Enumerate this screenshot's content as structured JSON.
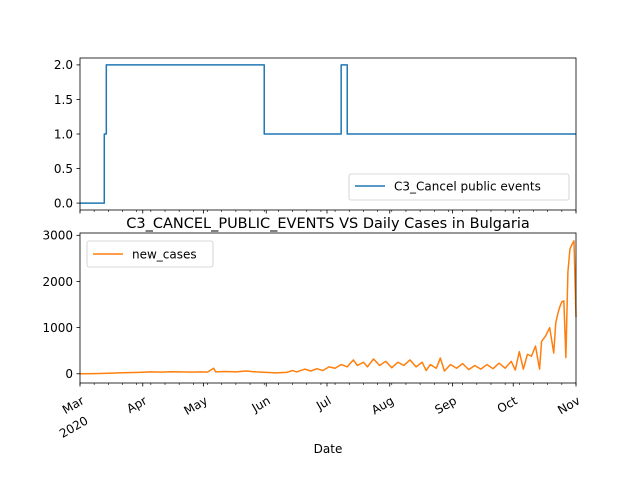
{
  "chart_data": [
    {
      "type": "line",
      "title": "",
      "xlabel": "",
      "ylabel": "",
      "ylim": [
        -0.1,
        2.1
      ],
      "y_ticks": [
        "0.0",
        "0.5",
        "1.0",
        "1.5",
        "2.0"
      ],
      "legend_placement": "lower-right",
      "grid": false,
      "series": [
        {
          "name": "C3_Cancel public events",
          "color": "#1f77b4",
          "points": [
            [
              "2020-03-01",
              0
            ],
            [
              "2020-03-13",
              0
            ],
            [
              "2020-03-13",
              1
            ],
            [
              "2020-03-14",
              1
            ],
            [
              "2020-03-14",
              2
            ],
            [
              "2020-05-31",
              2
            ],
            [
              "2020-05-31",
              1
            ],
            [
              "2020-07-08",
              1
            ],
            [
              "2020-07-08",
              2
            ],
            [
              "2020-07-11",
              2
            ],
            [
              "2020-07-11",
              1
            ],
            [
              "2020-11-01",
              1
            ]
          ]
        }
      ]
    },
    {
      "type": "line",
      "title": "C3_CANCEL_PUBLIC_EVENTS VS Daily Cases in Bulgaria",
      "xlabel": "Date",
      "ylabel": "",
      "ylim": [
        -200,
        3050
      ],
      "y_ticks": [
        "0",
        "1000",
        "2000",
        "3000"
      ],
      "legend_placement": "top-left",
      "grid": false,
      "x_range": [
        "2020-03-01",
        "2020-11-01"
      ],
      "x_tick_labels": [
        {
          "date": "2020-03-01",
          "label": "Mar",
          "sublabel": "2020"
        },
        {
          "date": "2020-04-01",
          "label": "Apr"
        },
        {
          "date": "2020-05-01",
          "label": "May"
        },
        {
          "date": "2020-06-01",
          "label": "Jun"
        },
        {
          "date": "2020-07-01",
          "label": "Jul"
        },
        {
          "date": "2020-08-01",
          "label": "Aug"
        },
        {
          "date": "2020-09-01",
          "label": "Sep"
        },
        {
          "date": "2020-10-01",
          "label": "Oct"
        },
        {
          "date": "2020-11-01",
          "label": "Nov"
        }
      ],
      "series": [
        {
          "name": "new_cases",
          "color": "#ff7f0e",
          "points": [
            [
              "2020-03-01",
              0
            ],
            [
              "2020-03-08",
              2
            ],
            [
              "2020-03-15",
              10
            ],
            [
              "2020-03-20",
              20
            ],
            [
              "2020-03-25",
              25
            ],
            [
              "2020-03-30",
              30
            ],
            [
              "2020-04-05",
              40
            ],
            [
              "2020-04-10",
              35
            ],
            [
              "2020-04-15",
              45
            ],
            [
              "2020-04-20",
              40
            ],
            [
              "2020-04-25",
              35
            ],
            [
              "2020-04-30",
              40
            ],
            [
              "2020-05-03",
              35
            ],
            [
              "2020-05-06",
              120
            ],
            [
              "2020-05-07",
              40
            ],
            [
              "2020-05-12",
              50
            ],
            [
              "2020-05-17",
              40
            ],
            [
              "2020-05-22",
              60
            ],
            [
              "2020-05-27",
              40
            ],
            [
              "2020-06-01",
              30
            ],
            [
              "2020-06-06",
              20
            ],
            [
              "2020-06-11",
              30
            ],
            [
              "2020-06-14",
              70
            ],
            [
              "2020-06-16",
              40
            ],
            [
              "2020-06-20",
              100
            ],
            [
              "2020-06-23",
              60
            ],
            [
              "2020-06-26",
              110
            ],
            [
              "2020-06-29",
              70
            ],
            [
              "2020-07-02",
              150
            ],
            [
              "2020-07-05",
              120
            ],
            [
              "2020-07-08",
              200
            ],
            [
              "2020-07-11",
              150
            ],
            [
              "2020-07-14",
              300
            ],
            [
              "2020-07-16",
              180
            ],
            [
              "2020-07-19",
              250
            ],
            [
              "2020-07-21",
              150
            ],
            [
              "2020-07-24",
              320
            ],
            [
              "2020-07-27",
              180
            ],
            [
              "2020-07-30",
              270
            ],
            [
              "2020-08-02",
              130
            ],
            [
              "2020-08-05",
              250
            ],
            [
              "2020-08-08",
              180
            ],
            [
              "2020-08-11",
              300
            ],
            [
              "2020-08-14",
              150
            ],
            [
              "2020-08-17",
              250
            ],
            [
              "2020-08-19",
              70
            ],
            [
              "2020-08-21",
              200
            ],
            [
              "2020-08-24",
              120
            ],
            [
              "2020-08-26",
              340
            ],
            [
              "2020-08-28",
              60
            ],
            [
              "2020-08-31",
              200
            ],
            [
              "2020-09-03",
              120
            ],
            [
              "2020-09-06",
              220
            ],
            [
              "2020-09-09",
              90
            ],
            [
              "2020-09-12",
              180
            ],
            [
              "2020-09-15",
              100
            ],
            [
              "2020-09-18",
              200
            ],
            [
              "2020-09-21",
              110
            ],
            [
              "2020-09-24",
              230
            ],
            [
              "2020-09-27",
              120
            ],
            [
              "2020-09-30",
              270
            ],
            [
              "2020-10-02",
              80
            ],
            [
              "2020-10-04",
              480
            ],
            [
              "2020-10-06",
              100
            ],
            [
              "2020-10-08",
              420
            ],
            [
              "2020-10-10",
              380
            ],
            [
              "2020-10-12",
              600
            ],
            [
              "2020-10-14",
              100
            ],
            [
              "2020-10-15",
              700
            ],
            [
              "2020-10-17",
              820
            ],
            [
              "2020-10-19",
              1000
            ],
            [
              "2020-10-21",
              450
            ],
            [
              "2020-10-22",
              1100
            ],
            [
              "2020-10-23",
              1300
            ],
            [
              "2020-10-24",
              1450
            ],
            [
              "2020-10-25",
              1560
            ],
            [
              "2020-10-26",
              1580
            ],
            [
              "2020-10-27",
              350
            ],
            [
              "2020-10-28",
              2200
            ],
            [
              "2020-10-29",
              2700
            ],
            [
              "2020-10-30",
              2800
            ],
            [
              "2020-10-31",
              2880
            ],
            [
              "2020-11-01",
              1230
            ]
          ]
        }
      ]
    }
  ]
}
